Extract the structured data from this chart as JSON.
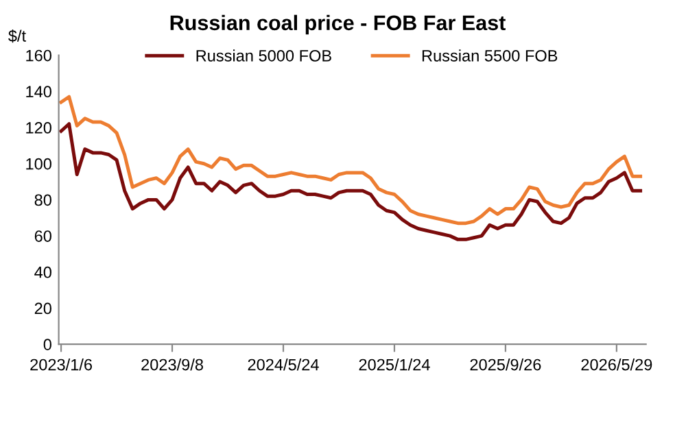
{
  "chart_data": {
    "type": "line",
    "title": "Russian coal price - FOB Far East",
    "ylabel": "$/t",
    "categories": [
      "2023/1/6",
      null,
      null,
      null,
      null,
      null,
      null,
      null,
      null,
      null,
      null,
      null,
      null,
      null,
      "2023/9/8",
      null,
      null,
      null,
      null,
      null,
      null,
      null,
      null,
      null,
      null,
      null,
      null,
      null,
      "2024/5/24",
      null,
      null,
      null,
      null,
      null,
      null,
      null,
      null,
      null,
      null,
      null,
      null,
      null,
      "2025/1/24",
      null,
      null,
      null,
      null,
      null,
      null,
      null,
      null,
      null,
      null,
      null,
      null,
      null,
      "2025/9/26",
      null,
      null,
      null,
      null,
      null,
      null,
      null,
      null,
      null,
      null,
      null,
      null,
      null,
      "2026/5/29",
      null,
      null,
      null
    ],
    "series": [
      {
        "name": "Russian 5000 FOB",
        "color": "#7b0c0c",
        "values": [
          118,
          122,
          94,
          108,
          106,
          106,
          105,
          102,
          85,
          75,
          78,
          80,
          80,
          75,
          80,
          92,
          98,
          89,
          89,
          85,
          90,
          88,
          84,
          88,
          89,
          85,
          82,
          82,
          83,
          85,
          85,
          83,
          83,
          82,
          81,
          84,
          85,
          85,
          85,
          83,
          77,
          74,
          73,
          69,
          66,
          64,
          63,
          62,
          61,
          60,
          58,
          58,
          59,
          60,
          66,
          64,
          66,
          66,
          72,
          80,
          79,
          73,
          68,
          67,
          70,
          78,
          81,
          81,
          84,
          90,
          92,
          95,
          85,
          85
        ]
      },
      {
        "name": "Russian 5500 FOB",
        "color": "#ed7d31",
        "values": [
          134,
          137,
          121,
          125,
          123,
          123,
          121,
          117,
          105,
          87,
          89,
          91,
          92,
          89,
          95,
          104,
          108,
          101,
          100,
          98,
          103,
          102,
          97,
          99,
          99,
          96,
          93,
          93,
          94,
          95,
          94,
          93,
          93,
          92,
          91,
          94,
          95,
          95,
          95,
          92,
          86,
          84,
          83,
          79,
          74,
          72,
          71,
          70,
          69,
          68,
          67,
          67,
          68,
          71,
          75,
          72,
          75,
          75,
          80,
          87,
          86,
          79,
          77,
          76,
          77,
          84,
          89,
          89,
          91,
          97,
          101,
          104,
          93,
          93
        ]
      }
    ],
    "ylim": [
      0,
      160
    ],
    "yticks": [
      0,
      20,
      40,
      60,
      80,
      100,
      120,
      140,
      160
    ],
    "grid": false,
    "legend": "top",
    "marker": "none",
    "line_style": "solid"
  }
}
